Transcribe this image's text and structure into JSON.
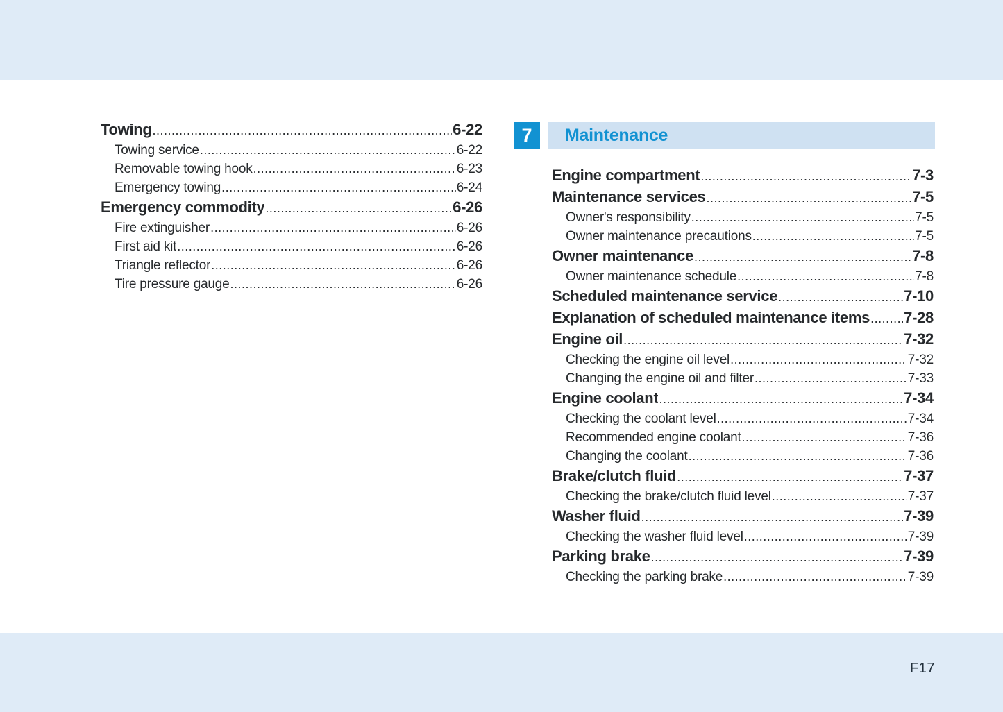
{
  "page": {
    "footer_page_number": "F17"
  },
  "colors": {
    "accent_blue": "#1292d2",
    "chapter_bar_bg": "#cfe1f2",
    "band_bg": "#dfebf7",
    "text": "#26292c"
  },
  "left_column": {
    "sections": [
      {
        "title": "Towing",
        "page": "6-22",
        "items": [
          {
            "label": "Towing service",
            "page": "6-22"
          },
          {
            "label": "Removable towing hook",
            "page": "6-23"
          },
          {
            "label": "Emergency towing",
            "page": "6-24"
          }
        ]
      },
      {
        "title": "Emergency commodity",
        "page": "6-26",
        "items": [
          {
            "label": "Fire extinguisher",
            "page": "6-26"
          },
          {
            "label": "First aid kit",
            "page": "6-26"
          },
          {
            "label": "Triangle reflector",
            "page": "6-26"
          },
          {
            "label": "Tire pressure gauge",
            "page": "6-26"
          }
        ]
      }
    ]
  },
  "right_column": {
    "chapter_number": "7",
    "chapter_title": "Maintenance",
    "sections": [
      {
        "title": "Engine compartment",
        "page": "7-3",
        "items": []
      },
      {
        "title": "Maintenance services",
        "page": "7-5",
        "items": [
          {
            "label": "Owner's responsibility",
            "page": "7-5"
          },
          {
            "label": "Owner maintenance precautions",
            "page": "7-5"
          }
        ]
      },
      {
        "title": "Owner maintenance",
        "page": "7-8",
        "items": [
          {
            "label": "Owner maintenance schedule",
            "page": "7-8"
          }
        ]
      },
      {
        "title": "Scheduled maintenance service",
        "page": "7-10",
        "items": []
      },
      {
        "title": "Explanation of scheduled maintenance items",
        "page": "7-28",
        "items": []
      },
      {
        "title": "Engine oil",
        "page": "7-32",
        "items": [
          {
            "label": "Checking the engine oil level",
            "page": "7-32"
          },
          {
            "label": "Changing the engine oil and filter",
            "page": "7-33"
          }
        ]
      },
      {
        "title": "Engine coolant",
        "page": "7-34",
        "items": [
          {
            "label": "Checking the coolant level",
            "page": "7-34"
          },
          {
            "label": "Recommended engine coolant",
            "page": "7-36"
          },
          {
            "label": "Changing the coolant",
            "page": "7-36"
          }
        ]
      },
      {
        "title": "Brake/clutch fluid",
        "page": "7-37",
        "items": [
          {
            "label": "Checking the brake/clutch fluid level",
            "page": "7-37"
          }
        ]
      },
      {
        "title": "Washer fluid",
        "page": "7-39",
        "items": [
          {
            "label": "Checking the washer fluid level",
            "page": "7-39"
          }
        ]
      },
      {
        "title": "Parking brake",
        "page": "7-39",
        "items": [
          {
            "label": "Checking the parking brake",
            "page": "7-39"
          }
        ]
      }
    ]
  }
}
